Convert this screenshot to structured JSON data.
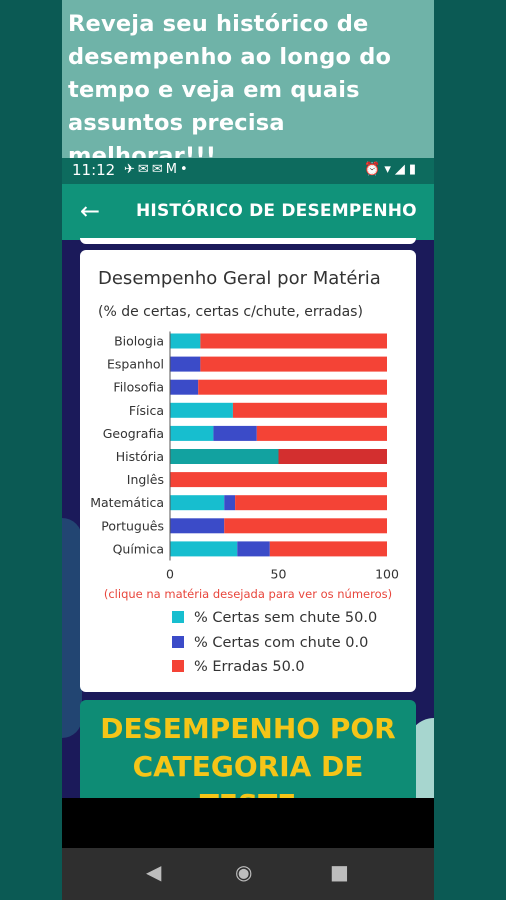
{
  "banner": {
    "text": "Reveja seu histórico de desempenho ao longo do tempo e veja em quais assuntos precisa melhorar!!!"
  },
  "status_bar": {
    "time": "11:12"
  },
  "app_bar": {
    "title": "HISTÓRICO DE DESEMPENHO"
  },
  "chart_card": {
    "hint": "(clique na matéria desejada para ver os números)",
    "legend": [
      {
        "label": "% Certas sem chute  50.0",
        "color": "#17becf"
      },
      {
        "label": "% Certas com chute  0.0",
        "color": "#3b4bc8"
      },
      {
        "label": "% Erradas  50.0",
        "color": "#f44336"
      }
    ]
  },
  "category_card": {
    "title": "DESEMPENHO POR CATEGORIA DE TESTE"
  },
  "chart_data": {
    "type": "bar",
    "orientation": "horizontal",
    "stacked": true,
    "title": "Desempenho Geral por Matéria",
    "subtitle": "(% de certas, certas c/chute, erradas)",
    "categories": [
      "Biologia",
      "Espanhol",
      "Filosofia",
      "Física",
      "Geografia",
      "História",
      "Inglês",
      "Matemática",
      "Português",
      "Química"
    ],
    "series": [
      {
        "name": "% Certas sem chute",
        "color": "#17becf",
        "values": [
          14,
          0,
          0,
          29,
          20,
          50,
          0,
          25,
          0,
          31
        ]
      },
      {
        "name": "% Certas com chute",
        "color": "#3b4bc8",
        "values": [
          0,
          14,
          13,
          0,
          20,
          0,
          0,
          5,
          25,
          15
        ]
      },
      {
        "name": "% Erradas",
        "color": "#f44336",
        "values": [
          86,
          86,
          87,
          71,
          60,
          50,
          100,
          70,
          75,
          54
        ]
      }
    ],
    "highlight_category": "História",
    "highlight_colors": [
      "#12a2a0",
      "#2f3caa",
      "#d32f2f"
    ],
    "xlim": [
      0,
      100
    ],
    "xticks": [
      0,
      50,
      100
    ],
    "grid": false
  }
}
